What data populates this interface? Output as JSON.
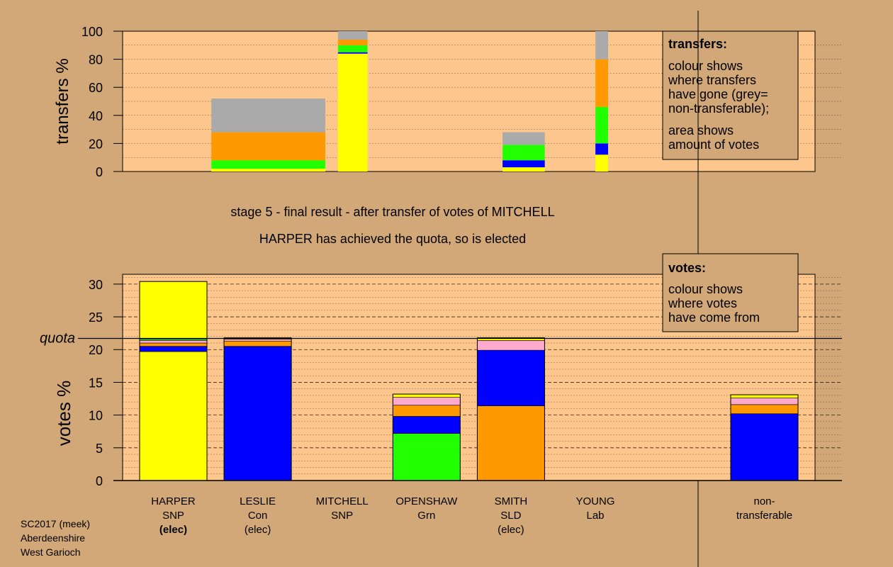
{
  "stage_title": "stage 5 - final result - after transfer of votes of MITCHELL",
  "stage_subtitle": "HARPER has achieved the quota, so is elected",
  "footer": [
    "SC2017 (meek)",
    "Aberdeenshire",
    "West Garioch"
  ],
  "colors": {
    "background": "#d2a878",
    "panel": "#fdc68c",
    "snp": "#ffff00",
    "con": "#0000ff",
    "grn": "#22ff00",
    "sld": "#ff9900",
    "lab": "#ffaacc",
    "non_transferable": "#aaaaaa",
    "other": "#ff8888"
  },
  "candidates": [
    {
      "name": "HARPER",
      "party": "SNP",
      "status": "(elec)",
      "bold": true
    },
    {
      "name": "LESLIE",
      "party": "Con",
      "status": "(elec)",
      "bold": false
    },
    {
      "name": "MITCHELL",
      "party": "SNP",
      "status": "",
      "bold": false
    },
    {
      "name": "OPENSHAW",
      "party": "Grn",
      "status": "",
      "bold": false
    },
    {
      "name": "SMITH",
      "party": "SLD",
      "status": "(elec)",
      "bold": false
    },
    {
      "name": "YOUNG",
      "party": "Lab",
      "status": "",
      "bold": false
    },
    {
      "name": "non-",
      "party": "transferable",
      "status": "",
      "bold": false
    }
  ],
  "chart_data": [
    {
      "type": "bar",
      "ylabel": "transfers %",
      "ylim": [
        0,
        100
      ],
      "yticks": [
        0,
        20,
        40,
        60,
        80,
        100
      ],
      "legend": {
        "title": "transfers:",
        "lines1": [
          "colour shows",
          "where transfers",
          "have gone (grey=",
          "non-transferable);"
        ],
        "lines2": [
          "area shows",
          "amount of votes"
        ]
      },
      "bars": [
        {
          "x_from": 0.85,
          "x_to": 2.2,
          "segments": [
            {
              "color": "snp",
              "value": 2
            },
            {
              "color": "grn",
              "value": 6
            },
            {
              "color": "sld",
              "value": 20
            },
            {
              "color": "non_transferable",
              "value": 24
            }
          ]
        },
        {
          "x_from": 2.35,
          "x_to": 2.7,
          "segments": [
            {
              "color": "snp",
              "value": 84
            },
            {
              "color": "con",
              "value": 1
            },
            {
              "color": "grn",
              "value": 5
            },
            {
              "color": "sld",
              "value": 4
            },
            {
              "color": "non_transferable",
              "value": 6
            }
          ]
        },
        {
          "x_from": 4.3,
          "x_to": 4.8,
          "segments": [
            {
              "color": "snp",
              "value": 3
            },
            {
              "color": "con",
              "value": 5
            },
            {
              "color": "grn",
              "value": 11
            },
            {
              "color": "non_transferable",
              "value": 9
            }
          ]
        },
        {
          "x_from": 5.4,
          "x_to": 5.55,
          "segments": [
            {
              "color": "snp",
              "value": 12
            },
            {
              "color": "con",
              "value": 8
            },
            {
              "color": "grn",
              "value": 26
            },
            {
              "color": "sld",
              "value": 34
            },
            {
              "color": "non_transferable",
              "value": 20
            }
          ]
        }
      ]
    },
    {
      "type": "bar",
      "ylabel": "votes %",
      "ylim": [
        0,
        31.5
      ],
      "yticks": [
        0,
        5,
        10,
        15,
        20,
        25,
        30
      ],
      "quota_label": "quota",
      "quota": 21.7,
      "legend": {
        "title": "votes:",
        "lines1": [
          "colour shows",
          "where votes",
          "have come from"
        ]
      },
      "categories": [
        "HARPER",
        "LESLIE",
        "MITCHELL",
        "OPENSHAW",
        "SMITH",
        "YOUNG",
        "non-transferable"
      ],
      "stacks": [
        [
          {
            "color": "snp",
            "value": 19.7
          },
          {
            "color": "con",
            "value": 0.8
          },
          {
            "color": "sld",
            "value": 0.5
          },
          {
            "color": "lab",
            "value": 0.4
          },
          {
            "color": "grn",
            "value": 0.2
          },
          {
            "color": "snp",
            "value": 8.8
          }
        ],
        [
          {
            "color": "con",
            "value": 20.5
          },
          {
            "color": "sld",
            "value": 0.8
          },
          {
            "color": "lab",
            "value": 0.3
          },
          {
            "color": "snp",
            "value": 0.2
          }
        ],
        [],
        [
          {
            "color": "grn",
            "value": 7.2
          },
          {
            "color": "con",
            "value": 2.6
          },
          {
            "color": "sld",
            "value": 1.7
          },
          {
            "color": "lab",
            "value": 1.2
          },
          {
            "color": "snp",
            "value": 0.5
          }
        ],
        [
          {
            "color": "sld",
            "value": 11.4
          },
          {
            "color": "con",
            "value": 8.5
          },
          {
            "color": "lab",
            "value": 1.5
          },
          {
            "color": "snp",
            "value": 0.4
          }
        ],
        [],
        [
          {
            "color": "con",
            "value": 10.2
          },
          {
            "color": "sld",
            "value": 1.4
          },
          {
            "color": "lab",
            "value": 1.0
          },
          {
            "color": "snp",
            "value": 0.5
          }
        ]
      ]
    }
  ]
}
